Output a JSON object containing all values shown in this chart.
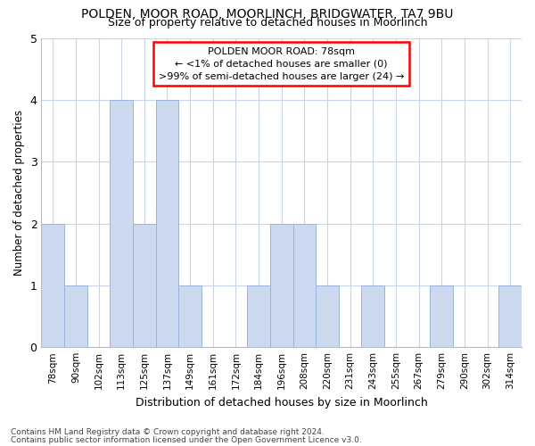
{
  "title": "POLDEN, MOOR ROAD, MOORLINCH, BRIDGWATER, TA7 9BU",
  "subtitle": "Size of property relative to detached houses in Moorlinch",
  "xlabel": "Distribution of detached houses by size in Moorlinch",
  "ylabel": "Number of detached properties",
  "categories": [
    "78sqm",
    "90sqm",
    "102sqm",
    "113sqm",
    "125sqm",
    "137sqm",
    "149sqm",
    "161sqm",
    "172sqm",
    "184sqm",
    "196sqm",
    "208sqm",
    "220sqm",
    "231sqm",
    "243sqm",
    "255sqm",
    "267sqm",
    "279sqm",
    "290sqm",
    "302sqm",
    "314sqm"
  ],
  "values": [
    2,
    1,
    0,
    4,
    2,
    4,
    1,
    0,
    0,
    1,
    2,
    2,
    1,
    0,
    1,
    0,
    0,
    1,
    0,
    0,
    1
  ],
  "bar_color": "#ccd9ef",
  "bar_edge_color": "#9ab5d9",
  "annotation_title": "POLDEN MOOR ROAD: 78sqm",
  "annotation_line2": "← <1% of detached houses are smaller (0)",
  "annotation_line3": ">99% of semi-detached houses are larger (24) →",
  "ylim": [
    0,
    5
  ],
  "yticks": [
    0,
    1,
    2,
    3,
    4,
    5
  ],
  "ytick_labels": [
    "0",
    "1",
    "2",
    "3",
    "4",
    "5"
  ],
  "background_color": "#ffffff",
  "grid_color": "#c8d4e8",
  "title_fontsize": 10,
  "subtitle_fontsize": 9,
  "footnote1": "Contains HM Land Registry data © Crown copyright and database right 2024.",
  "footnote2": "Contains public sector information licensed under the Open Government Licence v3.0."
}
